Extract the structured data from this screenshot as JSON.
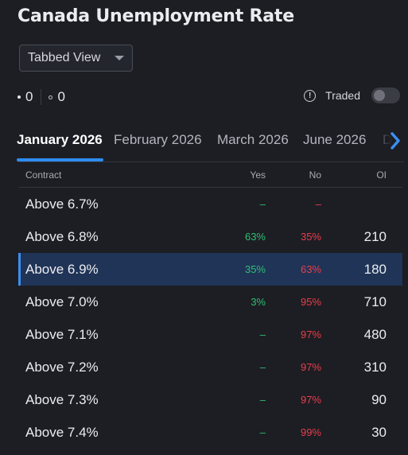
{
  "title": "Canada Unemployment Rate",
  "view_select": {
    "value": "Tabbed View"
  },
  "counters": {
    "first": "0",
    "second": "0"
  },
  "traded": {
    "label": "Traded",
    "info_glyph": "!",
    "enabled": false
  },
  "tabs": [
    {
      "label": "January 2026",
      "active": true
    },
    {
      "label": "February 2026",
      "active": false
    },
    {
      "label": "March 2026",
      "active": false
    },
    {
      "label": "June 2026",
      "active": false
    },
    {
      "label": "D",
      "active": false
    }
  ],
  "table": {
    "headers": {
      "contract": "Contract",
      "yes": "Yes",
      "no": "No",
      "oi": "OI"
    },
    "rows": [
      {
        "contract": "Above 6.7%",
        "yes": "–",
        "no": "–",
        "oi": ""
      },
      {
        "contract": "Above 6.8%",
        "yes": "63%",
        "no": "35%",
        "oi": "210"
      },
      {
        "contract": "Above 6.9%",
        "yes": "35%",
        "no": "63%",
        "oi": "180",
        "selected": true
      },
      {
        "contract": "Above 7.0%",
        "yes": "3%",
        "no": "95%",
        "oi": "710"
      },
      {
        "contract": "Above 7.1%",
        "yes": "–",
        "no": "97%",
        "oi": "480"
      },
      {
        "contract": "Above 7.2%",
        "yes": "–",
        "no": "97%",
        "oi": "310"
      },
      {
        "contract": "Above 7.3%",
        "yes": "–",
        "no": "97%",
        "oi": "90"
      },
      {
        "contract": "Above 7.4%",
        "yes": "–",
        "no": "99%",
        "oi": "30"
      }
    ]
  },
  "colors": {
    "yes": "#2fbf71",
    "no": "#ea3d4a",
    "accent": "#2f8cf0",
    "selected_row": "#203457"
  },
  "icons": {
    "dropdown": "caret-down-icon",
    "info": "info-icon",
    "next_tab": "chevron-right-icon"
  }
}
